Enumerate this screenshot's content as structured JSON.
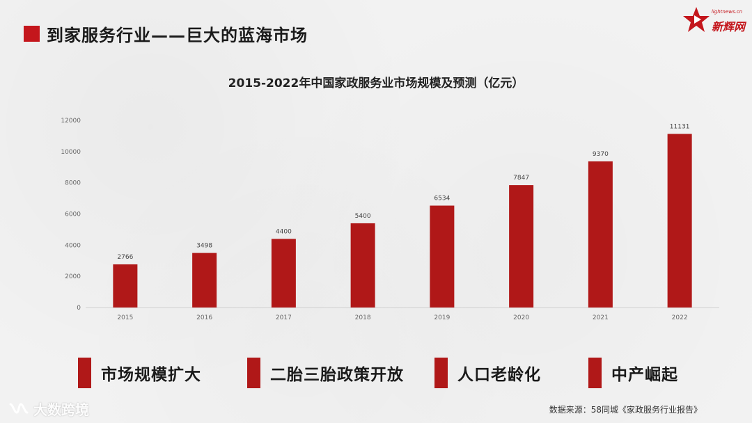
{
  "header": {
    "title": "到家服务行业——巨大的蓝海市场"
  },
  "logo": {
    "name": "新辉网",
    "sub": "lightnews.cn"
  },
  "chart_data": {
    "type": "bar",
    "title": "2015-2022年中国家政服务业市场规模及预测（亿元）",
    "categories": [
      "2015",
      "2016",
      "2017",
      "2018",
      "2019",
      "2020",
      "2021",
      "2022"
    ],
    "values": [
      2766,
      3498,
      4400,
      5400,
      6534,
      7847,
      9370,
      11131
    ],
    "yticks": [
      0,
      2000,
      4000,
      6000,
      8000,
      10000,
      12000
    ],
    "ylim": [
      0,
      12000
    ],
    "xlabel": "",
    "ylabel": "",
    "grid": false,
    "bar_color": "#b01818"
  },
  "legend": [
    "市场规模扩大",
    "二胎三胎政策开放",
    "人口老龄化",
    "中产崛起"
  ],
  "source": "数据来源：58同城《家政服务行业报告》",
  "watermark": {
    "text": "大数跨境",
    "icon": "wechat-channel-icon"
  }
}
